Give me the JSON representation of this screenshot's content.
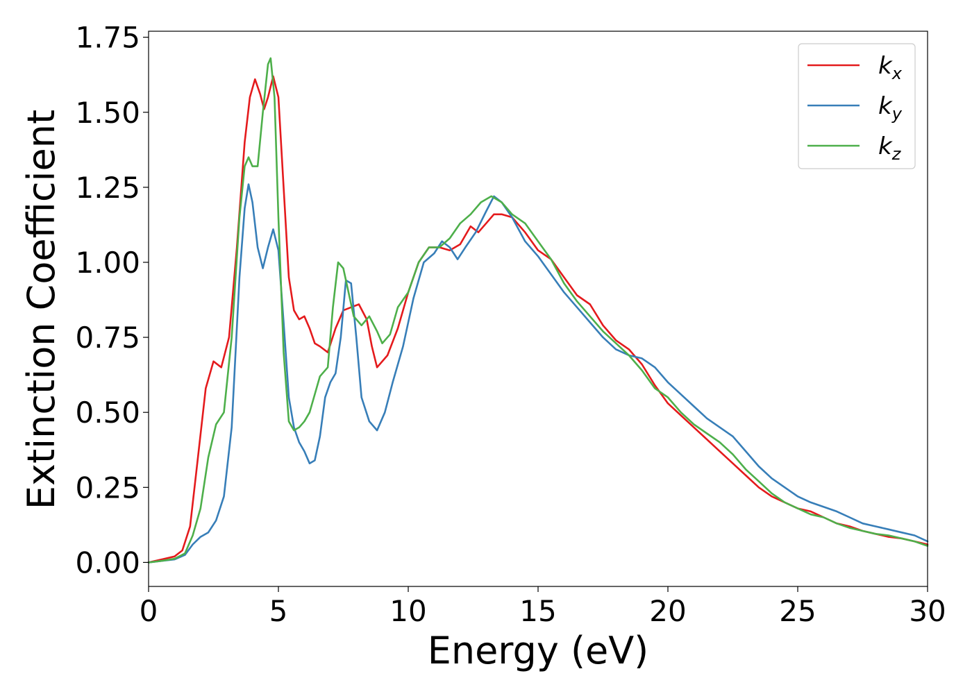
{
  "chart_data": {
    "type": "line",
    "title": "",
    "xlabel": "Energy (eV)",
    "ylabel": "Extinction Coefficient",
    "xlim": [
      0,
      30
    ],
    "ylim": [
      -0.08,
      1.77
    ],
    "xticks": [
      0,
      5,
      10,
      15,
      20,
      25,
      30
    ],
    "xtick_labels": [
      "0",
      "5",
      "10",
      "15",
      "20",
      "25",
      "30"
    ],
    "yticks": [
      0.0,
      0.25,
      0.5,
      0.75,
      1.0,
      1.25,
      1.5,
      1.75
    ],
    "ytick_labels": [
      "0.00",
      "0.25",
      "0.50",
      "0.75",
      "1.00",
      "1.25",
      "1.50",
      "1.75"
    ],
    "grid": false,
    "legend_position": "top-right",
    "series": [
      {
        "name": "k_x",
        "legend_base": "k",
        "legend_sub": "x",
        "color": "#e41a1c",
        "points": [
          [
            0,
            0
          ],
          [
            0.5,
            0.01
          ],
          [
            1.0,
            0.02
          ],
          [
            1.3,
            0.04
          ],
          [
            1.6,
            0.12
          ],
          [
            1.9,
            0.35
          ],
          [
            2.2,
            0.58
          ],
          [
            2.5,
            0.67
          ],
          [
            2.8,
            0.65
          ],
          [
            3.1,
            0.75
          ],
          [
            3.4,
            1.05
          ],
          [
            3.7,
            1.4
          ],
          [
            3.9,
            1.55
          ],
          [
            4.1,
            1.61
          ],
          [
            4.3,
            1.56
          ],
          [
            4.45,
            1.51
          ],
          [
            4.6,
            1.55
          ],
          [
            4.8,
            1.62
          ],
          [
            5.0,
            1.55
          ],
          [
            5.2,
            1.25
          ],
          [
            5.4,
            0.95
          ],
          [
            5.6,
            0.84
          ],
          [
            5.8,
            0.81
          ],
          [
            6.0,
            0.82
          ],
          [
            6.2,
            0.78
          ],
          [
            6.4,
            0.73
          ],
          [
            6.6,
            0.72
          ],
          [
            6.9,
            0.7
          ],
          [
            7.2,
            0.78
          ],
          [
            7.5,
            0.84
          ],
          [
            7.8,
            0.85
          ],
          [
            8.1,
            0.86
          ],
          [
            8.4,
            0.81
          ],
          [
            8.6,
            0.72
          ],
          [
            8.8,
            0.65
          ],
          [
            9.2,
            0.69
          ],
          [
            9.6,
            0.78
          ],
          [
            10.0,
            0.9
          ],
          [
            10.4,
            1.0
          ],
          [
            10.8,
            1.05
          ],
          [
            11.2,
            1.05
          ],
          [
            11.6,
            1.04
          ],
          [
            12.0,
            1.06
          ],
          [
            12.4,
            1.12
          ],
          [
            12.7,
            1.1
          ],
          [
            13.0,
            1.13
          ],
          [
            13.3,
            1.16
          ],
          [
            13.6,
            1.16
          ],
          [
            14.0,
            1.15
          ],
          [
            14.5,
            1.1
          ],
          [
            15.0,
            1.04
          ],
          [
            15.5,
            1.01
          ],
          [
            16.0,
            0.95
          ],
          [
            16.5,
            0.89
          ],
          [
            17.0,
            0.86
          ],
          [
            17.5,
            0.79
          ],
          [
            18.0,
            0.74
          ],
          [
            18.5,
            0.71
          ],
          [
            19.0,
            0.66
          ],
          [
            19.5,
            0.59
          ],
          [
            20.0,
            0.53
          ],
          [
            20.5,
            0.49
          ],
          [
            21.0,
            0.45
          ],
          [
            21.5,
            0.41
          ],
          [
            22.0,
            0.37
          ],
          [
            22.5,
            0.33
          ],
          [
            23.0,
            0.29
          ],
          [
            23.5,
            0.25
          ],
          [
            24.0,
            0.22
          ],
          [
            24.5,
            0.2
          ],
          [
            25.0,
            0.18
          ],
          [
            25.5,
            0.17
          ],
          [
            26.0,
            0.15
          ],
          [
            26.5,
            0.13
          ],
          [
            27.0,
            0.12
          ],
          [
            27.5,
            0.105
          ],
          [
            28.0,
            0.095
          ],
          [
            28.5,
            0.085
          ],
          [
            29.0,
            0.08
          ],
          [
            29.5,
            0.07
          ],
          [
            30.0,
            0.06
          ]
        ]
      },
      {
        "name": "k_y",
        "legend_base": "k",
        "legend_sub": "y",
        "color": "#377eb8",
        "points": [
          [
            0,
            0
          ],
          [
            0.5,
            0.005
          ],
          [
            1.0,
            0.01
          ],
          [
            1.4,
            0.025
          ],
          [
            1.7,
            0.06
          ],
          [
            2.0,
            0.085
          ],
          [
            2.3,
            0.1
          ],
          [
            2.6,
            0.14
          ],
          [
            2.9,
            0.22
          ],
          [
            3.2,
            0.45
          ],
          [
            3.5,
            0.95
          ],
          [
            3.7,
            1.18
          ],
          [
            3.85,
            1.26
          ],
          [
            4.0,
            1.2
          ],
          [
            4.2,
            1.05
          ],
          [
            4.4,
            0.98
          ],
          [
            4.6,
            1.05
          ],
          [
            4.8,
            1.11
          ],
          [
            5.0,
            1.04
          ],
          [
            5.2,
            0.8
          ],
          [
            5.4,
            0.55
          ],
          [
            5.6,
            0.45
          ],
          [
            5.8,
            0.4
          ],
          [
            6.0,
            0.37
          ],
          [
            6.2,
            0.33
          ],
          [
            6.4,
            0.34
          ],
          [
            6.6,
            0.42
          ],
          [
            6.8,
            0.55
          ],
          [
            7.0,
            0.6
          ],
          [
            7.2,
            0.63
          ],
          [
            7.4,
            0.75
          ],
          [
            7.6,
            0.94
          ],
          [
            7.8,
            0.93
          ],
          [
            8.0,
            0.75
          ],
          [
            8.2,
            0.55
          ],
          [
            8.5,
            0.47
          ],
          [
            8.8,
            0.44
          ],
          [
            9.1,
            0.5
          ],
          [
            9.4,
            0.6
          ],
          [
            9.8,
            0.72
          ],
          [
            10.2,
            0.88
          ],
          [
            10.6,
            1.0
          ],
          [
            11.0,
            1.03
          ],
          [
            11.3,
            1.07
          ],
          [
            11.6,
            1.05
          ],
          [
            11.9,
            1.01
          ],
          [
            12.2,
            1.05
          ],
          [
            12.6,
            1.1
          ],
          [
            13.0,
            1.17
          ],
          [
            13.3,
            1.22
          ],
          [
            13.6,
            1.2
          ],
          [
            14.0,
            1.15
          ],
          [
            14.5,
            1.07
          ],
          [
            15.0,
            1.02
          ],
          [
            15.5,
            0.96
          ],
          [
            16.0,
            0.9
          ],
          [
            16.5,
            0.85
          ],
          [
            17.0,
            0.8
          ],
          [
            17.5,
            0.75
          ],
          [
            18.0,
            0.71
          ],
          [
            18.5,
            0.69
          ],
          [
            19.0,
            0.68
          ],
          [
            19.5,
            0.65
          ],
          [
            20.0,
            0.6
          ],
          [
            20.5,
            0.56
          ],
          [
            21.0,
            0.52
          ],
          [
            21.5,
            0.48
          ],
          [
            22.0,
            0.45
          ],
          [
            22.5,
            0.42
          ],
          [
            23.0,
            0.37
          ],
          [
            23.5,
            0.32
          ],
          [
            24.0,
            0.28
          ],
          [
            24.5,
            0.25
          ],
          [
            25.0,
            0.22
          ],
          [
            25.5,
            0.2
          ],
          [
            26.0,
            0.185
          ],
          [
            26.5,
            0.17
          ],
          [
            27.0,
            0.15
          ],
          [
            27.5,
            0.13
          ],
          [
            28.0,
            0.12
          ],
          [
            28.5,
            0.11
          ],
          [
            29.0,
            0.1
          ],
          [
            29.5,
            0.09
          ],
          [
            30.0,
            0.07
          ]
        ]
      },
      {
        "name": "k_z",
        "legend_base": "k",
        "legend_sub": "z",
        "color": "#4daf4a",
        "points": [
          [
            0,
            0
          ],
          [
            0.5,
            0.005
          ],
          [
            1.0,
            0.012
          ],
          [
            1.4,
            0.03
          ],
          [
            1.7,
            0.09
          ],
          [
            2.0,
            0.18
          ],
          [
            2.3,
            0.35
          ],
          [
            2.6,
            0.46
          ],
          [
            2.9,
            0.5
          ],
          [
            3.2,
            0.75
          ],
          [
            3.5,
            1.15
          ],
          [
            3.7,
            1.32
          ],
          [
            3.85,
            1.35
          ],
          [
            4.0,
            1.32
          ],
          [
            4.2,
            1.32
          ],
          [
            4.4,
            1.5
          ],
          [
            4.6,
            1.66
          ],
          [
            4.7,
            1.68
          ],
          [
            4.85,
            1.55
          ],
          [
            5.0,
            1.15
          ],
          [
            5.2,
            0.7
          ],
          [
            5.4,
            0.47
          ],
          [
            5.6,
            0.44
          ],
          [
            5.8,
            0.45
          ],
          [
            6.0,
            0.47
          ],
          [
            6.2,
            0.5
          ],
          [
            6.4,
            0.56
          ],
          [
            6.6,
            0.62
          ],
          [
            6.9,
            0.65
          ],
          [
            7.1,
            0.85
          ],
          [
            7.3,
            1.0
          ],
          [
            7.5,
            0.98
          ],
          [
            7.7,
            0.9
          ],
          [
            7.9,
            0.82
          ],
          [
            8.2,
            0.79
          ],
          [
            8.5,
            0.82
          ],
          [
            8.8,
            0.77
          ],
          [
            9.0,
            0.73
          ],
          [
            9.3,
            0.76
          ],
          [
            9.6,
            0.85
          ],
          [
            10.0,
            0.9
          ],
          [
            10.4,
            1.0
          ],
          [
            10.8,
            1.05
          ],
          [
            11.2,
            1.05
          ],
          [
            11.6,
            1.08
          ],
          [
            12.0,
            1.13
          ],
          [
            12.4,
            1.16
          ],
          [
            12.8,
            1.2
          ],
          [
            13.2,
            1.22
          ],
          [
            13.6,
            1.2
          ],
          [
            14.0,
            1.16
          ],
          [
            14.5,
            1.13
          ],
          [
            15.0,
            1.07
          ],
          [
            15.5,
            1.01
          ],
          [
            16.0,
            0.93
          ],
          [
            16.5,
            0.87
          ],
          [
            17.0,
            0.82
          ],
          [
            17.5,
            0.77
          ],
          [
            18.0,
            0.73
          ],
          [
            18.5,
            0.69
          ],
          [
            19.0,
            0.64
          ],
          [
            19.5,
            0.58
          ],
          [
            20.0,
            0.55
          ],
          [
            20.5,
            0.5
          ],
          [
            21.0,
            0.46
          ],
          [
            21.5,
            0.43
          ],
          [
            22.0,
            0.4
          ],
          [
            22.5,
            0.36
          ],
          [
            23.0,
            0.31
          ],
          [
            23.5,
            0.27
          ],
          [
            24.0,
            0.23
          ],
          [
            24.5,
            0.2
          ],
          [
            25.0,
            0.18
          ],
          [
            25.5,
            0.16
          ],
          [
            26.0,
            0.15
          ],
          [
            26.5,
            0.13
          ],
          [
            27.0,
            0.115
          ],
          [
            27.5,
            0.105
          ],
          [
            28.0,
            0.095
          ],
          [
            28.5,
            0.09
          ],
          [
            29.0,
            0.08
          ],
          [
            29.5,
            0.07
          ],
          [
            30.0,
            0.055
          ]
        ]
      }
    ]
  }
}
